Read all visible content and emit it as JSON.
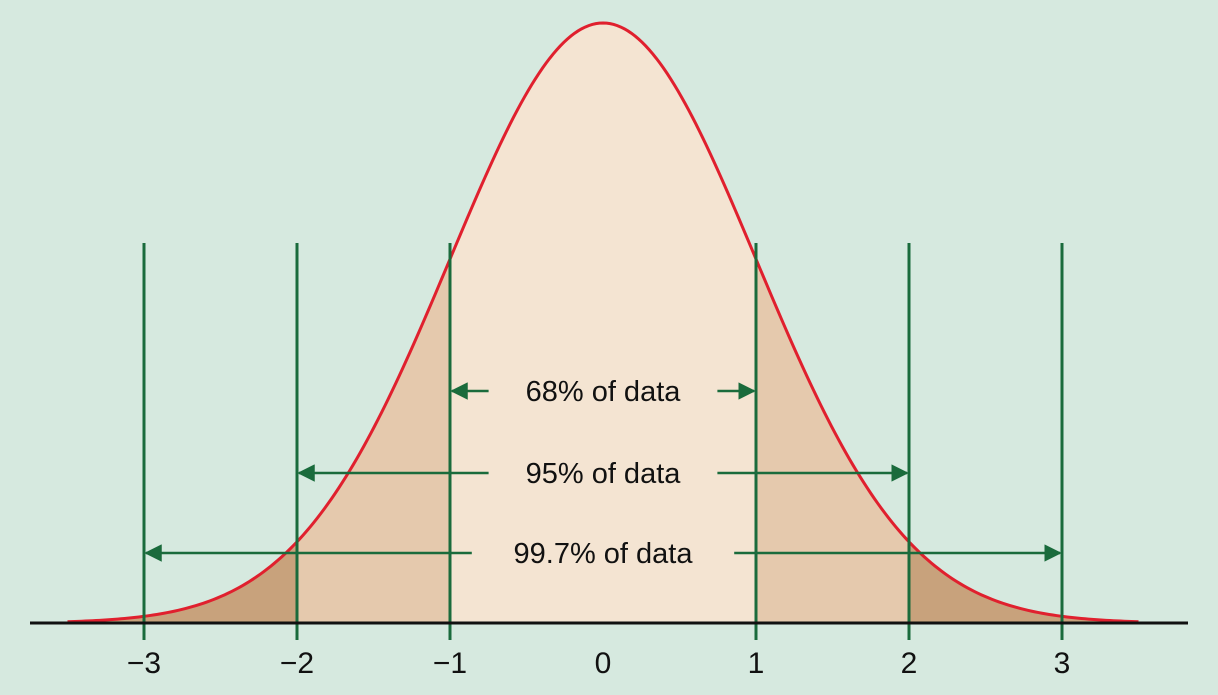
{
  "chart_data": {
    "type": "area",
    "distribution": "standard normal",
    "xlim": [
      -3.5,
      3.5
    ],
    "ticks": [
      {
        "value": -3,
        "label": "−3"
      },
      {
        "value": -2,
        "label": "−2"
      },
      {
        "value": -1,
        "label": "−1"
      },
      {
        "value": 0,
        "label": "0"
      },
      {
        "value": 1,
        "label": "1"
      },
      {
        "value": 2,
        "label": "2"
      },
      {
        "value": 3,
        "label": "3"
      }
    ],
    "bands": [
      {
        "from": -1,
        "to": 1,
        "percent": 68,
        "label": "68% of data"
      },
      {
        "from": -2,
        "to": 2,
        "percent": 95,
        "label": "95% of data"
      },
      {
        "from": -3,
        "to": 3,
        "percent": 99.7,
        "label": "99.7% of data"
      }
    ],
    "grid": false
  },
  "colors": {
    "background": "#d6e9df",
    "curve": "#e0202e",
    "fill_inner": "#f4e4d2",
    "fill_middle": "#e5c9ad",
    "fill_outer": "#c8a27c",
    "guides": "#1a6b3c",
    "axis": "#111111"
  }
}
